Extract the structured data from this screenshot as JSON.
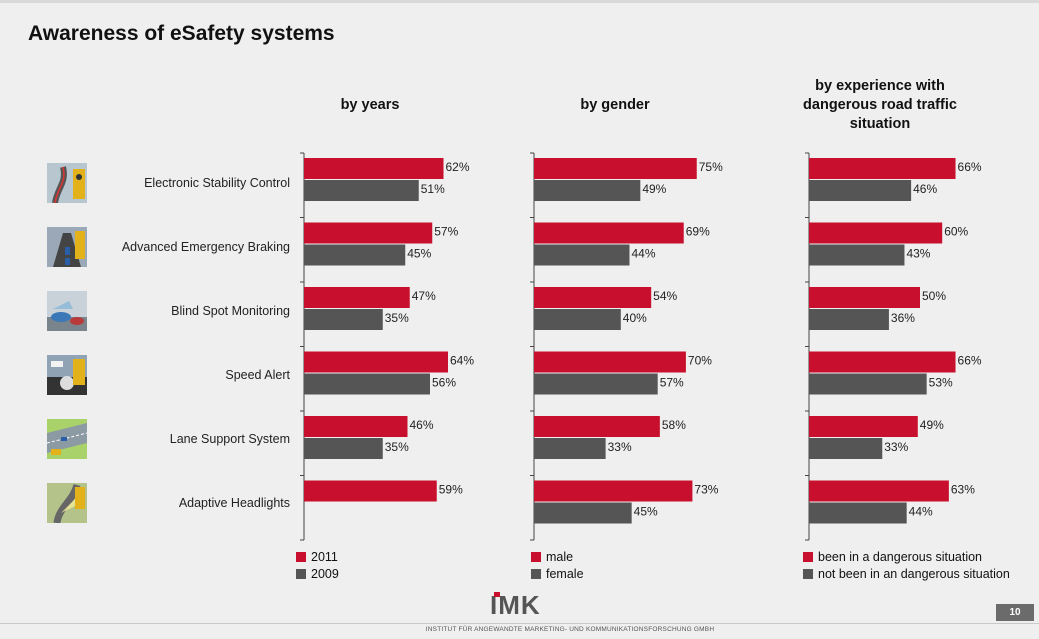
{
  "title": "Awareness of eSafety systems",
  "page_number": "10",
  "logo_text": "IMK",
  "footer_text": "INSTITUT FÜR ANGEWANDTE MARKETING- UND KOMMUNIKATIONSFORSCHUNG GMBH",
  "colors": {
    "primary": "#c8102e",
    "secondary": "#555555"
  },
  "categories": [
    {
      "label": "Electronic Stability Control",
      "icon": "stability-control-icon"
    },
    {
      "label": "Advanced Emergency Braking",
      "icon": "emergency-braking-icon"
    },
    {
      "label": "Blind Spot Monitoring",
      "icon": "blind-spot-icon"
    },
    {
      "label": "Speed Alert",
      "icon": "speed-alert-icon"
    },
    {
      "label": "Lane Support System",
      "icon": "lane-support-icon"
    },
    {
      "label": "Adaptive Headlights",
      "icon": "adaptive-headlights-icon"
    }
  ],
  "chart_data": [
    {
      "type": "bar",
      "orientation": "horizontal",
      "title": "by years",
      "categories": [
        "Electronic Stability Control",
        "Advanced Emergency Braking",
        "Blind Spot Monitoring",
        "Speed Alert",
        "Lane Support System",
        "Adaptive Headlights"
      ],
      "series": [
        {
          "name": "2011",
          "color": "#c8102e",
          "values": [
            62,
            57,
            47,
            64,
            46,
            59
          ]
        },
        {
          "name": "2009",
          "color": "#555555",
          "values": [
            51,
            45,
            35,
            56,
            35,
            null
          ]
        }
      ],
      "value_suffix": "%",
      "xlim": [
        0,
        100
      ],
      "legend_position": "bottom-left"
    },
    {
      "type": "bar",
      "orientation": "horizontal",
      "title": "by gender",
      "categories": [
        "Electronic Stability Control",
        "Advanced Emergency Braking",
        "Blind Spot Monitoring",
        "Speed Alert",
        "Lane Support System",
        "Adaptive Headlights"
      ],
      "series": [
        {
          "name": "male",
          "color": "#c8102e",
          "values": [
            75,
            69,
            54,
            70,
            58,
            73
          ]
        },
        {
          "name": "female",
          "color": "#555555",
          "values": [
            49,
            44,
            40,
            57,
            33,
            45
          ]
        }
      ],
      "value_suffix": "%",
      "xlim": [
        0,
        100
      ],
      "legend_position": "bottom-left"
    },
    {
      "type": "bar",
      "orientation": "horizontal",
      "title": "by experience with\ndangerous road traffic\nsituation",
      "categories": [
        "Electronic Stability Control",
        "Advanced Emergency Braking",
        "Blind Spot Monitoring",
        "Speed Alert",
        "Lane Support System",
        "Adaptive Headlights"
      ],
      "series": [
        {
          "name": "been in a dangerous situation",
          "color": "#c8102e",
          "values": [
            66,
            60,
            50,
            66,
            49,
            63
          ]
        },
        {
          "name": "not been in an dangerous situation",
          "color": "#555555",
          "values": [
            46,
            43,
            36,
            53,
            33,
            44
          ]
        }
      ],
      "value_suffix": "%",
      "xlim": [
        0,
        100
      ],
      "legend_position": "bottom-left"
    }
  ]
}
